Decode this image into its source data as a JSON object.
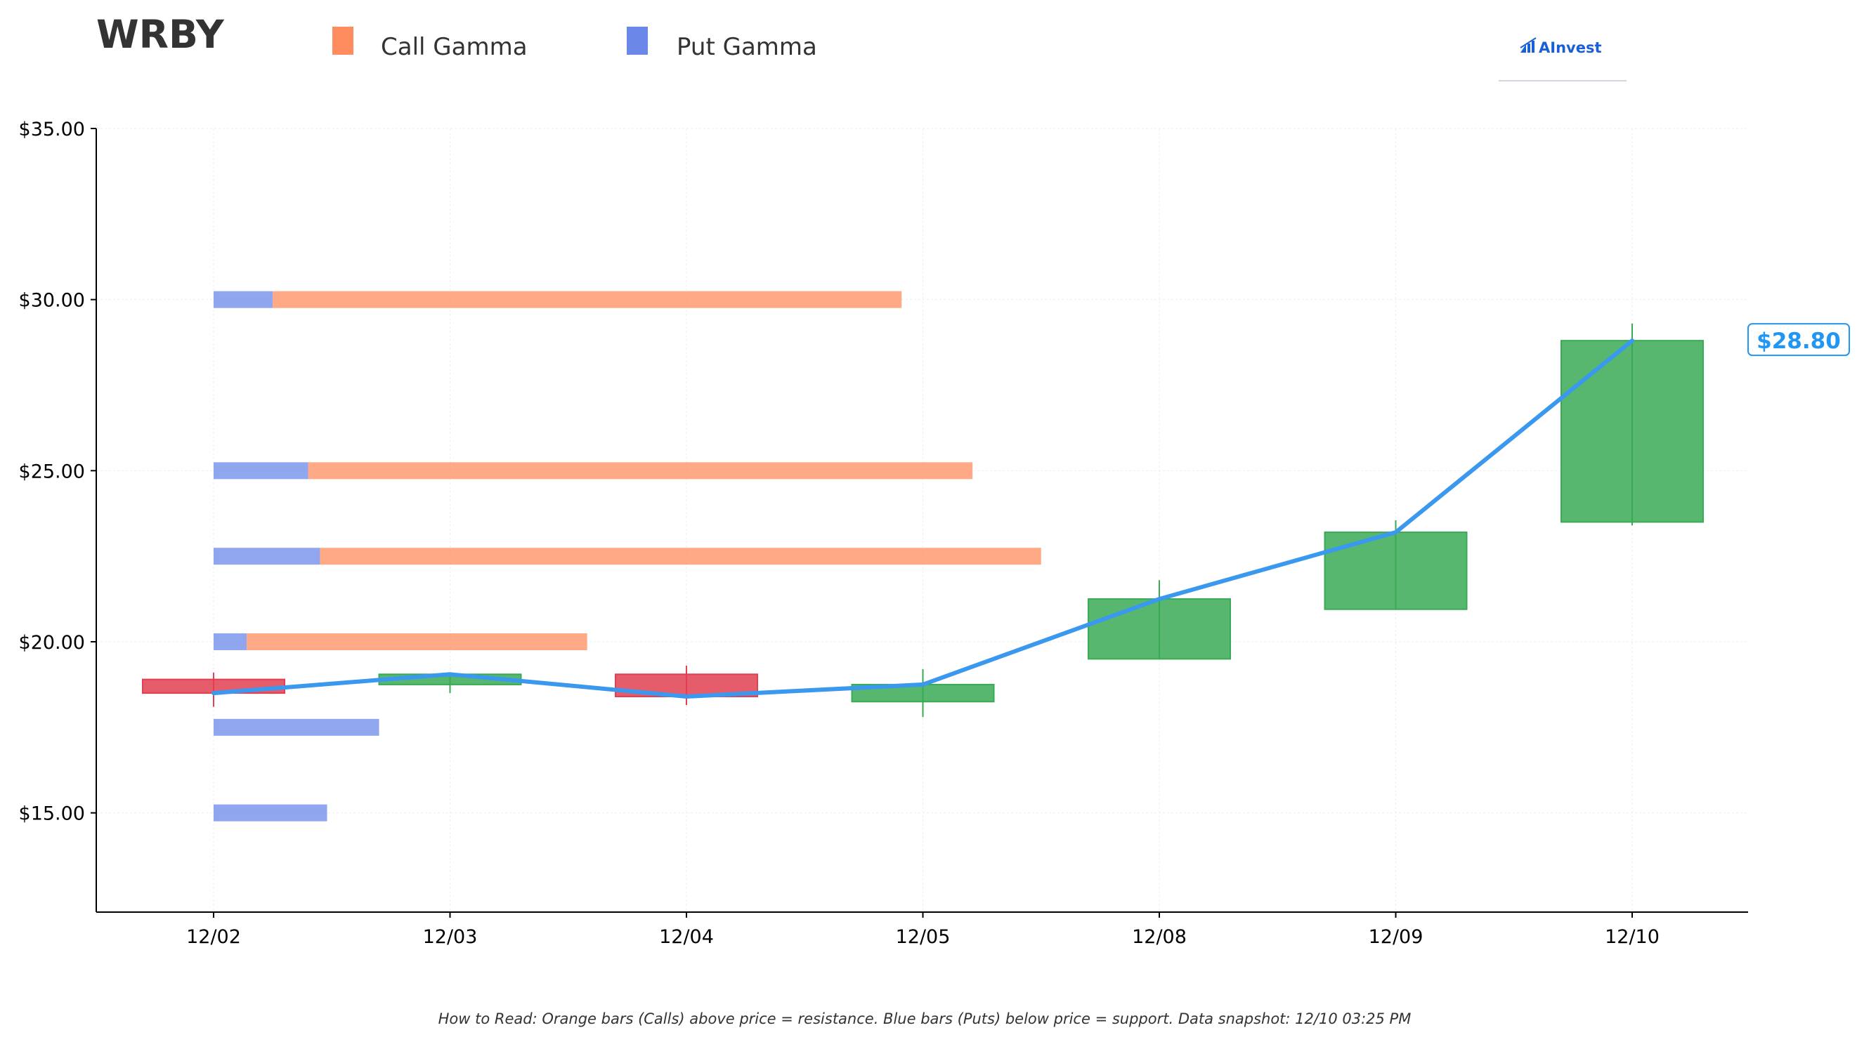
{
  "header": {
    "ticker": "WRBY",
    "brand": "AInvest"
  },
  "legend": {
    "call_label": "Call Gamma",
    "put_label": "Put Gamma"
  },
  "footer": {
    "note": "How to Read: Orange bars (Calls) above price = resistance. Blue bars (Puts) below price = support. Data snapshot: 12/10 03:25 PM"
  },
  "colors": {
    "call": "#ff8c5f",
    "put": "#6b88e8",
    "up_candle": "#3aaa55",
    "down_candle": "#e04050",
    "price_line": "#3a98ee",
    "price_label": "#2196f3"
  },
  "chart_data": {
    "type": "candlestick",
    "title": "WRBY",
    "xlabel": "",
    "ylabel": "",
    "ylim": [
      12.1,
      35.0
    ],
    "y_ticks": [
      15,
      20,
      25,
      30,
      35
    ],
    "y_tick_labels": [
      "$15.00",
      "$20.00",
      "$25.00",
      "$30.00",
      "$35.00"
    ],
    "categories": [
      "12/02",
      "12/03",
      "12/04",
      "12/05",
      "12/08",
      "12/09",
      "12/10"
    ],
    "candles": [
      {
        "date": "12/02",
        "open": 18.9,
        "high": 19.1,
        "low": 18.1,
        "close": 18.5
      },
      {
        "date": "12/03",
        "open": 18.75,
        "high": 19.1,
        "low": 18.5,
        "close": 19.05
      },
      {
        "date": "12/04",
        "open": 19.05,
        "high": 19.3,
        "low": 18.15,
        "close": 18.4
      },
      {
        "date": "12/05",
        "open": 18.25,
        "high": 19.2,
        "low": 17.8,
        "close": 18.75
      },
      {
        "date": "12/08",
        "open": 19.5,
        "high": 21.8,
        "low": 19.5,
        "close": 21.25
      },
      {
        "date": "12/09",
        "open": 20.95,
        "high": 23.55,
        "low": 20.95,
        "close": 23.2
      },
      {
        "date": "12/10",
        "open": 23.5,
        "high": 29.3,
        "low": 23.4,
        "close": 28.8
      }
    ],
    "price_line": [
      18.5,
      19.05,
      18.4,
      18.75,
      21.25,
      23.2,
      28.8
    ],
    "last_price_label": "$28.80",
    "gamma_levels": [
      {
        "strike": 30.0,
        "put": 0.25,
        "call": 2.66
      },
      {
        "strike": 25.0,
        "put": 0.4,
        "call": 2.81
      },
      {
        "strike": 22.5,
        "put": 0.45,
        "call": 3.05
      },
      {
        "strike": 20.0,
        "put": 0.14,
        "call": 1.44
      },
      {
        "strike": 17.5,
        "put": 0.7,
        "call": 0
      },
      {
        "strike": 15.0,
        "put": 0.48,
        "call": 0
      }
    ],
    "grid": true,
    "legend_position": "top-left"
  }
}
